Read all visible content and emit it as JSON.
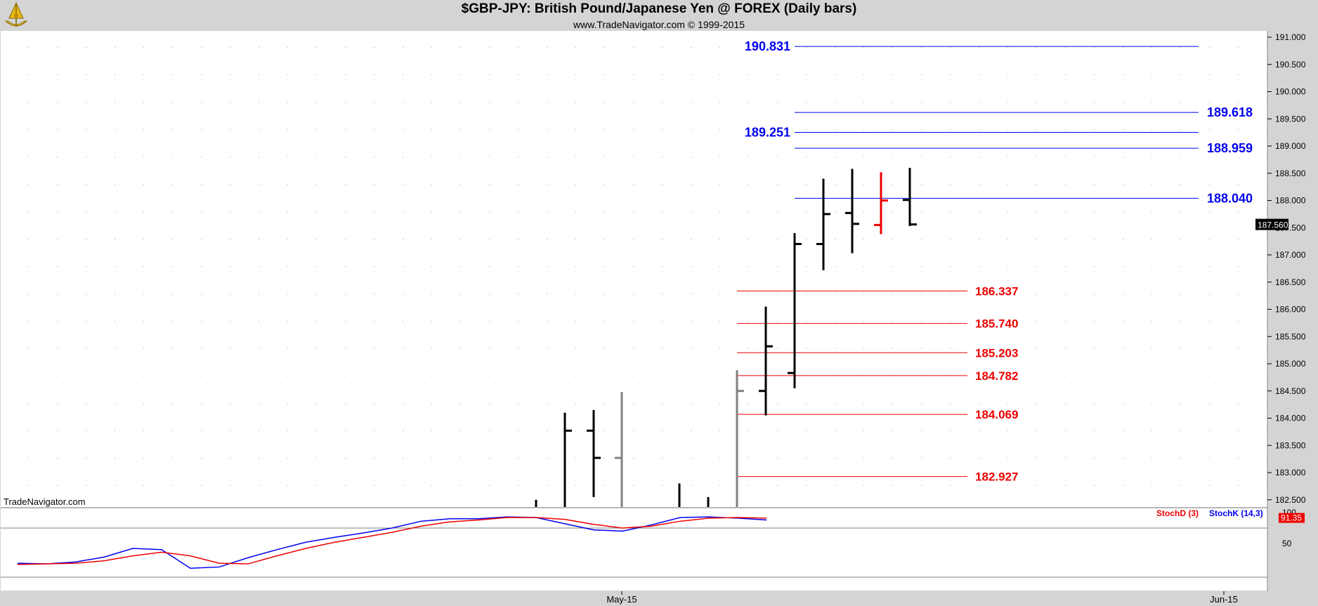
{
  "header": {
    "title": "$GBP-JPY:  British Pound/Japanese Yen @ FOREX  (Daily bars)",
    "copyright": "www.TradeNavigator.com © 1999-2015",
    "watermark": "TradeNavigator.com",
    "logo_icon": "sextant-logo"
  },
  "chart_data": {
    "type": "ohlc-bar",
    "price_axis": {
      "ylim": [
        182.3,
        191.1
      ],
      "ticks": [
        "191.000",
        "190.500",
        "190.000",
        "189.500",
        "189.000",
        "188.500",
        "188.000",
        "187.500",
        "187.000",
        "186.500",
        "186.000",
        "185.500",
        "185.000",
        "184.500",
        "184.000",
        "183.500",
        "183.000",
        "182.500"
      ],
      "last_price": "187.560"
    },
    "x_axis": {
      "labels": [
        "May-15",
        "Jun-15"
      ]
    },
    "bars": [
      {
        "o": null,
        "h": 182.5,
        "l": 182.3,
        "c": null,
        "color": "black"
      },
      {
        "o": null,
        "h": 184.1,
        "l": 182.3,
        "c": 183.77,
        "color": "black"
      },
      {
        "o": 183.77,
        "h": 184.15,
        "l": 182.55,
        "c": 183.27,
        "color": "black"
      },
      {
        "o": 183.27,
        "h": 184.48,
        "l": 182.3,
        "c": null,
        "color": "gray"
      },
      {
        "o": null,
        "h": 182.8,
        "l": 182.3,
        "c": null,
        "color": "black"
      },
      {
        "o": null,
        "h": 182.55,
        "l": 182.3,
        "c": null,
        "color": "black"
      },
      {
        "o": null,
        "h": 184.88,
        "l": 182.3,
        "c": 184.5,
        "color": "gray"
      },
      {
        "o": 184.5,
        "h": 186.05,
        "l": 184.05,
        "c": 185.32,
        "color": "black"
      },
      {
        "o": 184.83,
        "h": 187.4,
        "l": 184.55,
        "c": 187.2,
        "color": "black"
      },
      {
        "o": 187.2,
        "h": 188.4,
        "l": 186.72,
        "c": 187.75,
        "color": "black"
      },
      {
        "o": 187.77,
        "h": 188.58,
        "l": 187.03,
        "c": 187.57,
        "color": "black"
      },
      {
        "o": 187.55,
        "h": 188.52,
        "l": 187.38,
        "c": 188.0,
        "color": "red"
      },
      {
        "o": 188.01,
        "h": 188.6,
        "l": 187.53,
        "c": 187.56,
        "color": "black"
      }
    ],
    "resistance_levels": [
      {
        "value": 190.831,
        "label": "190.831",
        "label_side": "left"
      },
      {
        "value": 189.618,
        "label": "189.618",
        "label_side": "right"
      },
      {
        "value": 189.251,
        "label": "189.251",
        "label_side": "left"
      },
      {
        "value": 188.959,
        "label": "188.959",
        "label_side": "right"
      },
      {
        "value": 188.04,
        "label": "188.040",
        "label_side": "right"
      }
    ],
    "support_levels": [
      {
        "value": 186.337,
        "label": "186.337"
      },
      {
        "value": 185.74,
        "label": "185.740"
      },
      {
        "value": 185.203,
        "label": "185.203"
      },
      {
        "value": 184.782,
        "label": "184.782"
      },
      {
        "value": 184.069,
        "label": "184.069"
      },
      {
        "value": 182.927,
        "label": "182.927"
      }
    ],
    "stochastic": {
      "legend_d": "StochD (3)",
      "legend_k": "StochK (14,3)",
      "ticks": [
        "100",
        "50"
      ],
      "last_value": "91.35",
      "ylim": [
        0,
        100
      ],
      "levels": [
        80,
        20
      ],
      "k_values": [
        18,
        17,
        20,
        28,
        42,
        40,
        10,
        12,
        27,
        40,
        52,
        60,
        67,
        75,
        86,
        90,
        90,
        93,
        92,
        82,
        72,
        70,
        80,
        92,
        93,
        91,
        88
      ],
      "d_values": [
        16,
        17,
        18,
        22,
        30,
        36,
        30,
        18,
        17,
        30,
        42,
        52,
        60,
        68,
        78,
        85,
        88,
        92,
        92,
        89,
        81,
        75,
        78,
        86,
        91,
        92,
        91
      ]
    },
    "colors": {
      "resistance": "#0000ee",
      "support": "#ee0000",
      "stoch_k": "#0000ee",
      "stoch_d": "#ee0000",
      "bar_black": "#000000",
      "bar_gray": "#808080",
      "bar_red": "#ee0000"
    }
  }
}
